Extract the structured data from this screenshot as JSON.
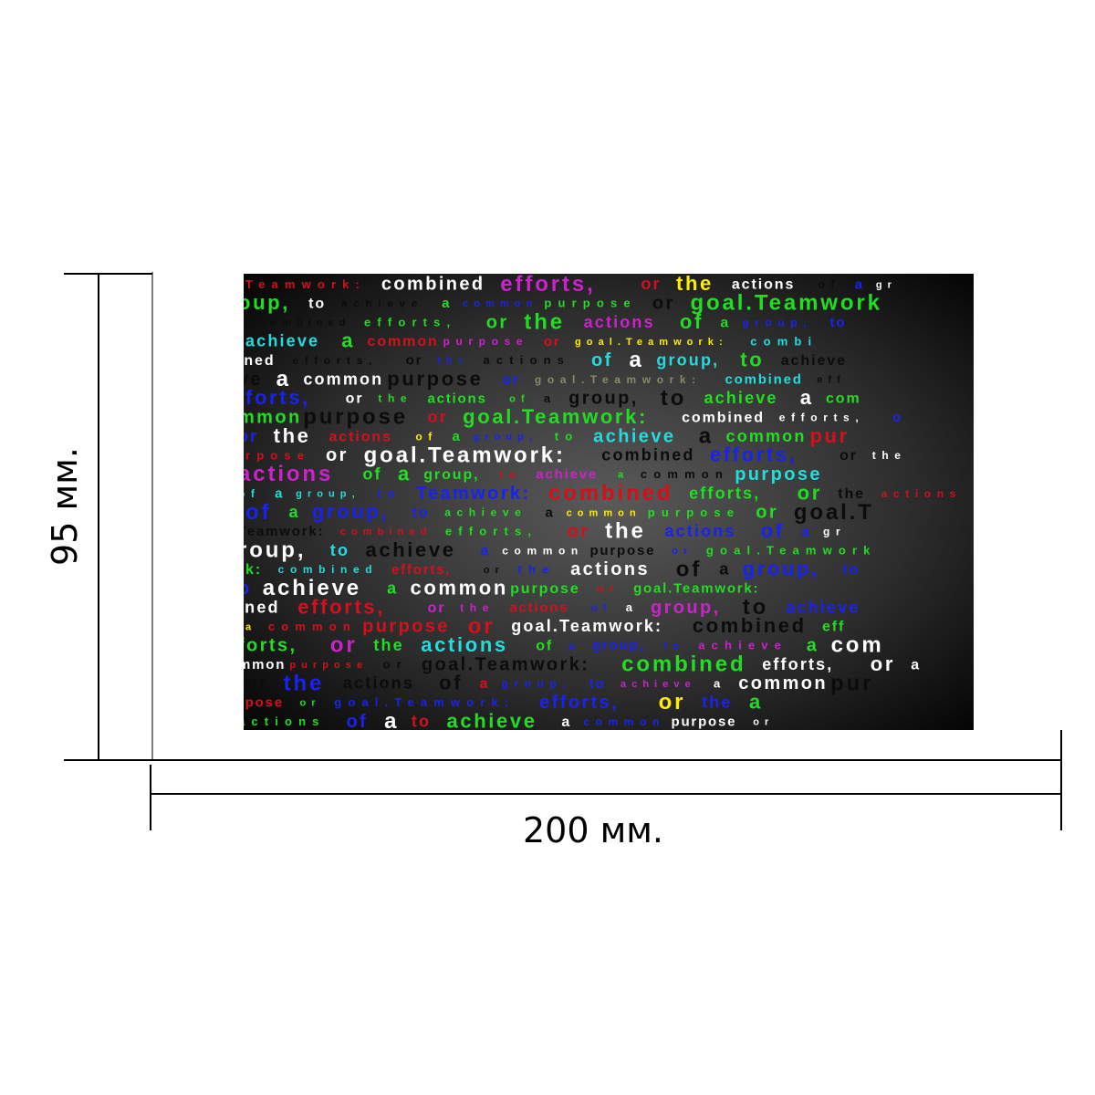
{
  "banner": {
    "rows": [
      {
        "words": [
          {
            "text": "Teamwork:",
            "color": "red"
          },
          {
            "text": "combined",
            "color": "white"
          },
          {
            "text": "efforts,",
            "color": "magenta"
          },
          {
            "text": "or",
            "color": "red"
          },
          {
            "text": "the",
            "color": "yellow"
          },
          {
            "text": "actions",
            "color": "white"
          },
          {
            "text": "of",
            "color": "black"
          },
          {
            "text": "a",
            "color": "blue"
          },
          {
            "text": "gr",
            "color": "white"
          }
        ]
      },
      {
        "words": [
          {
            "text": "oup,",
            "color": "green"
          },
          {
            "text": "to",
            "color": "white"
          },
          {
            "text": "achieve",
            "color": "black"
          },
          {
            "text": "a",
            "color": "green"
          },
          {
            "text": "common",
            "color": "blue"
          },
          {
            "text": "purpose",
            "color": "green"
          },
          {
            "text": "or",
            "color": "black"
          },
          {
            "text": "goal.Teamwork",
            "color": "green"
          }
        ]
      },
      {
        "words": [
          {
            "text": ":",
            "color": "green"
          },
          {
            "text": "combined",
            "color": "black"
          },
          {
            "text": "efforts,",
            "color": "green"
          },
          {
            "text": "or",
            "color": "green"
          },
          {
            "text": "the",
            "color": "green"
          },
          {
            "text": "actions",
            "color": "magenta"
          },
          {
            "text": "of",
            "color": "green"
          },
          {
            "text": "a",
            "color": "green"
          },
          {
            "text": "group,",
            "color": "blue"
          },
          {
            "text": "to",
            "color": "blue"
          }
        ]
      },
      {
        "words": [
          {
            "text": "achieve",
            "color": "cyan"
          },
          {
            "text": "a",
            "color": "green"
          },
          {
            "text": "common",
            "color": "red"
          },
          {
            "text": "purpose",
            "color": "magenta"
          },
          {
            "text": "or",
            "color": "red"
          },
          {
            "text": "goal.Teamwork:",
            "color": "yellow"
          },
          {
            "text": "combi",
            "color": "cyan"
          }
        ]
      },
      {
        "words": [
          {
            "text": "ined",
            "color": "white"
          },
          {
            "text": "efforts,",
            "color": "black"
          },
          {
            "text": "or",
            "color": "black"
          },
          {
            "text": "the",
            "color": "blue"
          },
          {
            "text": "actions",
            "color": "black"
          },
          {
            "text": "of",
            "color": "cyan"
          },
          {
            "text": "a",
            "color": "white"
          },
          {
            "text": "group,",
            "color": "cyan"
          },
          {
            "text": "to",
            "color": "green"
          },
          {
            "text": "achieve",
            "color": "black"
          }
        ]
      },
      {
        "words": [
          {
            "text": "ve",
            "color": "black"
          },
          {
            "text": "a",
            "color": "white"
          },
          {
            "text": "common",
            "color": "white"
          },
          {
            "text": "purpose",
            "color": "black"
          },
          {
            "text": "or",
            "color": "blue"
          },
          {
            "text": "goal.Teamwork:",
            "color": "gray"
          },
          {
            "text": "combined",
            "color": "cyan"
          },
          {
            "text": "eff",
            "color": "black"
          }
        ]
      },
      {
        "words": [
          {
            "text": "forts,",
            "color": "blue"
          },
          {
            "text": "or",
            "color": "white"
          },
          {
            "text": "the",
            "color": "green"
          },
          {
            "text": "actions",
            "color": "green"
          },
          {
            "text": "of",
            "color": "green"
          },
          {
            "text": "a",
            "color": "black"
          },
          {
            "text": "group,",
            "color": "black"
          },
          {
            "text": "to",
            "color": "black"
          },
          {
            "text": "achieve",
            "color": "green"
          },
          {
            "text": "a",
            "color": "white"
          },
          {
            "text": "com",
            "color": "green"
          }
        ]
      },
      {
        "words": [
          {
            "text": "mmon",
            "color": "green"
          },
          {
            "text": "purpose",
            "color": "black"
          },
          {
            "text": "or",
            "color": "red"
          },
          {
            "text": "goal.Teamwork:",
            "color": "green"
          },
          {
            "text": "combined",
            "color": "white"
          },
          {
            "text": "efforts,",
            "color": "white"
          },
          {
            "text": "o",
            "color": "blue"
          }
        ]
      },
      {
        "words": [
          {
            "text": "or",
            "color": "blue"
          },
          {
            "text": "the",
            "color": "white"
          },
          {
            "text": "actions",
            "color": "red"
          },
          {
            "text": "of",
            "color": "yellow"
          },
          {
            "text": "a",
            "color": "green"
          },
          {
            "text": "group,",
            "color": "blue"
          },
          {
            "text": "to",
            "color": "green"
          },
          {
            "text": "achieve",
            "color": "cyan"
          },
          {
            "text": "a",
            "color": "black"
          },
          {
            "text": "common",
            "color": "green"
          },
          {
            "text": "pur",
            "color": "red"
          }
        ]
      },
      {
        "words": [
          {
            "text": "rpose",
            "color": "red"
          },
          {
            "text": "or",
            "color": "white"
          },
          {
            "text": "goal.Teamwork:",
            "color": "white"
          },
          {
            "text": "combined",
            "color": "black"
          },
          {
            "text": "efforts,",
            "color": "blue"
          },
          {
            "text": "or",
            "color": "black"
          },
          {
            "text": "the",
            "color": "white"
          }
        ]
      },
      {
        "words": [
          {
            "text": "actions",
            "color": "magenta"
          },
          {
            "text": "of",
            "color": "green"
          },
          {
            "text": "a",
            "color": "green"
          },
          {
            "text": "group,",
            "color": "green"
          },
          {
            "text": "to",
            "color": "red"
          },
          {
            "text": "achieve",
            "color": "magenta"
          },
          {
            "text": "a",
            "color": "green"
          },
          {
            "text": "common",
            "color": "black"
          },
          {
            "text": "purpose",
            "color": "cyan"
          }
        ]
      },
      {
        "words": [
          {
            "text": "of",
            "color": "cyan"
          },
          {
            "text": "a",
            "color": "cyan"
          },
          {
            "text": "group,",
            "color": "cyan"
          },
          {
            "text": "to",
            "color": "blue"
          },
          {
            "text": "Teamwork:",
            "color": "blue"
          },
          {
            "text": "combined",
            "color": "red"
          },
          {
            "text": "efforts,",
            "color": "green"
          },
          {
            "text": "or",
            "color": "green"
          },
          {
            "text": "the",
            "color": "black"
          },
          {
            "text": "actions",
            "color": "red"
          }
        ]
      },
      {
        "words": [
          {
            "text": "of",
            "color": "blue"
          },
          {
            "text": "a",
            "color": "green"
          },
          {
            "text": "group,",
            "color": "blue"
          },
          {
            "text": "to",
            "color": "blue"
          },
          {
            "text": "achieve",
            "color": "green"
          },
          {
            "text": "a",
            "color": "black"
          },
          {
            "text": "common",
            "color": "yellow"
          },
          {
            "text": "purpose",
            "color": "green"
          },
          {
            "text": "or",
            "color": "green"
          },
          {
            "text": "goal.T",
            "color": "black"
          }
        ]
      },
      {
        "words": [
          {
            "text": "Teamwork:",
            "color": "black"
          },
          {
            "text": "combined",
            "color": "red"
          },
          {
            "text": "efforts,",
            "color": "green"
          },
          {
            "text": "or",
            "color": "red"
          },
          {
            "text": "the",
            "color": "white"
          },
          {
            "text": "actions",
            "color": "blue"
          },
          {
            "text": "of",
            "color": "blue"
          },
          {
            "text": "a",
            "color": "blue"
          },
          {
            "text": "gr",
            "color": "white"
          }
        ]
      },
      {
        "words": [
          {
            "text": "roup,",
            "color": "white"
          },
          {
            "text": "to",
            "color": "cyan"
          },
          {
            "text": "achieve",
            "color": "black"
          },
          {
            "text": "a",
            "color": "blue"
          },
          {
            "text": "common",
            "color": "white"
          },
          {
            "text": "purpose",
            "color": "black"
          },
          {
            "text": "or",
            "color": "blue"
          },
          {
            "text": "goal.Teamwork",
            "color": "green"
          }
        ]
      },
      {
        "words": [
          {
            "text": "k:",
            "color": "green"
          },
          {
            "text": "combined",
            "color": "cyan"
          },
          {
            "text": "efforts,",
            "color": "red"
          },
          {
            "text": "or",
            "color": "black"
          },
          {
            "text": "the",
            "color": "blue"
          },
          {
            "text": "actions",
            "color": "white"
          },
          {
            "text": "of",
            "color": "black"
          },
          {
            "text": "a",
            "color": "black"
          },
          {
            "text": "group,",
            "color": "blue"
          },
          {
            "text": "to",
            "color": "blue"
          }
        ]
      },
      {
        "words": [
          {
            "text": "o",
            "color": "blue"
          },
          {
            "text": "achieve",
            "color": "white"
          },
          {
            "text": "a",
            "color": "green"
          },
          {
            "text": "common",
            "color": "white"
          },
          {
            "text": "purpose",
            "color": "green"
          },
          {
            "text": "or",
            "color": "red"
          },
          {
            "text": "goal.Teamwork:",
            "color": "green"
          }
        ]
      },
      {
        "words": [
          {
            "text": "ined",
            "color": "white"
          },
          {
            "text": "efforts,",
            "color": "red"
          },
          {
            "text": "or",
            "color": "magenta"
          },
          {
            "text": "the",
            "color": "magenta"
          },
          {
            "text": "actions",
            "color": "red"
          },
          {
            "text": "of",
            "color": "blue"
          },
          {
            "text": "a",
            "color": "white"
          },
          {
            "text": "group,",
            "color": "magenta"
          },
          {
            "text": "to",
            "color": "black"
          },
          {
            "text": "achieve",
            "color": "blue"
          }
        ]
      },
      {
        "words": [
          {
            "text": "a",
            "color": "yellow"
          },
          {
            "text": "common",
            "color": "red"
          },
          {
            "text": "purpose",
            "color": "red"
          },
          {
            "text": "or",
            "color": "red"
          },
          {
            "text": "goal.Teamwork:",
            "color": "white"
          },
          {
            "text": "combined",
            "color": "black"
          },
          {
            "text": "eff",
            "color": "green"
          }
        ]
      },
      {
        "words": [
          {
            "text": "forts,",
            "color": "green"
          },
          {
            "text": "or",
            "color": "magenta"
          },
          {
            "text": "the",
            "color": "green"
          },
          {
            "text": "actions",
            "color": "cyan"
          },
          {
            "text": "of",
            "color": "green"
          },
          {
            "text": "a",
            "color": "blue"
          },
          {
            "text": "group,",
            "color": "blue"
          },
          {
            "text": "to",
            "color": "blue"
          },
          {
            "text": "achieve",
            "color": "magenta"
          },
          {
            "text": "a",
            "color": "green"
          },
          {
            "text": "com",
            "color": "white"
          }
        ]
      },
      {
        "words": [
          {
            "text": "mmon",
            "color": "white"
          },
          {
            "text": "purpose",
            "color": "red"
          },
          {
            "text": "or",
            "color": "black"
          },
          {
            "text": "goal.Teamwork:",
            "color": "black"
          },
          {
            "text": "combined",
            "color": "green"
          },
          {
            "text": "efforts,",
            "color": "white"
          },
          {
            "text": "or",
            "color": "white"
          },
          {
            "text": "a",
            "color": "white"
          }
        ]
      },
      {
        "words": [
          {
            "text": "or",
            "color": "black"
          },
          {
            "text": "the",
            "color": "blue"
          },
          {
            "text": "actions",
            "color": "black"
          },
          {
            "text": "of",
            "color": "black"
          },
          {
            "text": "a",
            "color": "red"
          },
          {
            "text": "group,",
            "color": "blue"
          },
          {
            "text": "to",
            "color": "blue"
          },
          {
            "text": "achieve",
            "color": "magenta"
          },
          {
            "text": "a",
            "color": "white"
          },
          {
            "text": "common",
            "color": "white"
          },
          {
            "text": "pur",
            "color": "black"
          }
        ]
      },
      {
        "words": [
          {
            "text": "rpose",
            "color": "red"
          },
          {
            "text": "or",
            "color": "green"
          },
          {
            "text": "goal.Teamwork:",
            "color": "blue"
          },
          {
            "text": "efforts,",
            "color": "blue"
          },
          {
            "text": "or",
            "color": "yellow"
          },
          {
            "text": "the",
            "color": "blue"
          },
          {
            "text": "a",
            "color": "green"
          }
        ]
      },
      {
        "words": [
          {
            "text": "actions",
            "color": "green"
          },
          {
            "text": "of",
            "color": "blue"
          },
          {
            "text": "a",
            "color": "white"
          },
          {
            "text": "to",
            "color": "red"
          },
          {
            "text": "achieve",
            "color": "green"
          },
          {
            "text": "a",
            "color": "white"
          },
          {
            "text": "common",
            "color": "blue"
          },
          {
            "text": "purpose",
            "color": "white"
          },
          {
            "text": "or",
            "color": "white"
          }
        ]
      }
    ]
  },
  "dimensions": {
    "height": "95 мм.",
    "width": "200 мм."
  }
}
